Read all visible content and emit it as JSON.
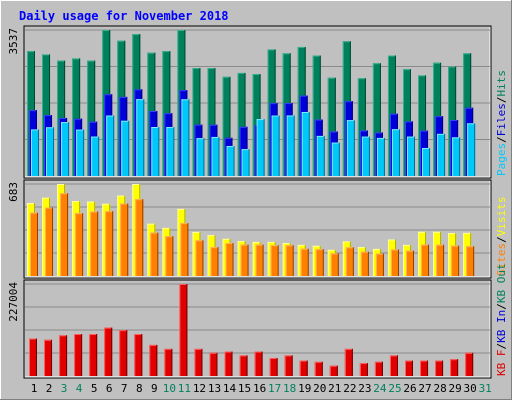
{
  "title": "Daily usage for November 2018",
  "colors": {
    "background": "#c0c0c0",
    "title": "#0000ff",
    "hits": "#00805c",
    "files": "#0000d8",
    "pages": "#00c8f8",
    "visits": "#ffff00",
    "sites": "#ff8000",
    "kb_in": "#0000d8",
    "kb_out": "#00805c",
    "kb_f": "#e00000",
    "weekend_label": "#00805c",
    "weekday_label": "#000000"
  },
  "chart_data": [
    {
      "type": "bar",
      "panel": "hits-files-pages",
      "ymax_label": "3537",
      "ylim": [
        0,
        3537
      ],
      "legend": [
        {
          "label": "Pages",
          "color": "#00c8f8"
        },
        {
          "label": "/",
          "color": "#000000"
        },
        {
          "label": "Files",
          "color": "#0000d8"
        },
        {
          "label": "/",
          "color": "#000000"
        },
        {
          "label": "Hits",
          "color": "#00805c"
        }
      ],
      "categories": [
        "1",
        "2",
        "3",
        "4",
        "5",
        "6",
        "7",
        "8",
        "9",
        "10",
        "11",
        "12",
        "13",
        "14",
        "15",
        "16",
        "17",
        "18",
        "19",
        "20",
        "21",
        "22",
        "23",
        "24",
        "25",
        "26",
        "27",
        "28",
        "29",
        "30",
        "31"
      ],
      "weekend_days": [
        "3",
        "4",
        "10",
        "11",
        "17",
        "18",
        "24",
        "25",
        "31"
      ],
      "series": [
        {
          "name": "Hits",
          "values": [
            3025,
            2945,
            2795,
            2848,
            2795,
            3537,
            3276,
            3436,
            2986,
            3025,
            3537,
            2615,
            2615,
            2403,
            2497,
            2470,
            3066,
            2972,
            3126,
            2917,
            2380,
            3264,
            2368,
            2731,
            2919,
            2587,
            2437,
            2743,
            2650,
            2972,
            0
          ]
        },
        {
          "name": "Files",
          "values": [
            1595,
            1475,
            1406,
            1387,
            1314,
            1979,
            1916,
            2099,
            1575,
            1520,
            2079,
            1243,
            1241,
            925,
            1191,
            1231,
            1765,
            1766,
            1947,
            1368,
            1079,
            1812,
            1103,
            1055,
            1508,
            1323,
            1098,
            1448,
            1355,
            1653,
            0
          ]
        },
        {
          "name": "Pages",
          "values": [
            1128,
            1180,
            1306,
            1124,
            956,
            1466,
            1338,
            1861,
            1187,
            1186,
            1858,
            916,
            946,
            727,
            650,
            1379,
            1465,
            1467,
            1551,
            971,
            810,
            1353,
            955,
            922,
            1133,
            956,
            677,
            1021,
            936,
            1276,
            0
          ]
        }
      ]
    },
    {
      "type": "bar",
      "panel": "visits-sites",
      "ymax_label": "683",
      "ylim": [
        0,
        683
      ],
      "legend": [
        {
          "label": "Sites",
          "color": "#ff8000"
        },
        {
          "label": "/",
          "color": "#000000"
        },
        {
          "label": "Visits",
          "color": "#ffff00"
        }
      ],
      "categories": [
        "1",
        "2",
        "3",
        "4",
        "5",
        "6",
        "7",
        "8",
        "9",
        "10",
        "11",
        "12",
        "13",
        "14",
        "15",
        "16",
        "17",
        "18",
        "19",
        "20",
        "21",
        "22",
        "23",
        "24",
        "25",
        "26",
        "27",
        "28",
        "29",
        "30",
        "31"
      ],
      "weekend_days": [
        "3",
        "4",
        "10",
        "11",
        "17",
        "18",
        "24",
        "25",
        "31"
      ],
      "series": [
        {
          "name": "Visits",
          "values": [
            542,
            581,
            683,
            556,
            553,
            536,
            597,
            683,
            388,
            357,
            498,
            327,
            303,
            276,
            259,
            253,
            253,
            245,
            231,
            224,
            194,
            257,
            214,
            201,
            271,
            231,
            328,
            328,
            318,
            320,
            0
          ]
        },
        {
          "name": "Sites",
          "values": [
            470,
            508,
            614,
            467,
            479,
            481,
            538,
            570,
            322,
            296,
            393,
            265,
            214,
            245,
            233,
            233,
            228,
            228,
            202,
            199,
            168,
            213,
            180,
            166,
            197,
            188,
            233,
            232,
            225,
            221,
            0
          ]
        }
      ]
    },
    {
      "type": "bar",
      "panel": "kb",
      "ymax_label": "227004",
      "ylim": [
        0,
        227004
      ],
      "legend": [
        {
          "label": "KB F",
          "color": "#e00000"
        },
        {
          "label": "/",
          "color": "#000000"
        },
        {
          "label": "KB In",
          "color": "#0000d8"
        },
        {
          "label": "/",
          "color": "#000000"
        },
        {
          "label": "KB Out",
          "color": "#00805c"
        }
      ],
      "categories": [
        "1",
        "2",
        "3",
        "4",
        "5",
        "6",
        "7",
        "8",
        "9",
        "10",
        "11",
        "12",
        "13",
        "14",
        "15",
        "16",
        "17",
        "18",
        "19",
        "20",
        "21",
        "22",
        "23",
        "24",
        "25",
        "26",
        "27",
        "28",
        "29",
        "30",
        "31"
      ],
      "weekend_days": [
        "3",
        "4",
        "10",
        "11",
        "17",
        "18",
        "24",
        "25",
        "31"
      ],
      "series": [
        {
          "name": "KB F",
          "values": [
            92440,
            89280,
            100352,
            103584,
            103584,
            119392,
            113152,
            103584,
            76704,
            66912,
            227004,
            66912,
            57216,
            60384,
            50816,
            60384,
            44480,
            50816,
            38080,
            34944,
            25344,
            66912,
            31776,
            35200,
            50816,
            38080,
            38080,
            38080,
            41408,
            57216,
            0
          ]
        }
      ]
    }
  ],
  "day_labels": [
    "1",
    "2",
    "3",
    "4",
    "5",
    "6",
    "7",
    "8",
    "9",
    "10",
    "11",
    "12",
    "13",
    "14",
    "15",
    "16",
    "17",
    "18",
    "19",
    "20",
    "21",
    "22",
    "23",
    "24",
    "25",
    "26",
    "27",
    "28",
    "29",
    "30",
    "31"
  ]
}
